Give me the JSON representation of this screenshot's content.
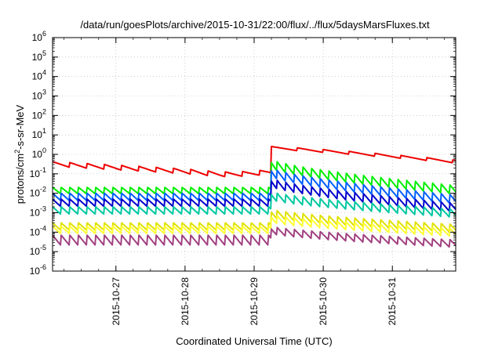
{
  "chart_data": {
    "type": "line",
    "title": "/data/run/goesPlots/archive/2015-10-31/22:00/flux/../flux/5daysMarsFluxes.txt",
    "xlabel": "Coordinated Universal Time (UTC)",
    "ylabel": "protons/cm²-s-sr-MeV",
    "y_scale": "log",
    "ylim": [
      1e-06,
      1000000.0
    ],
    "xlim": [
      "2015-10-26 02:00",
      "2015-10-31 22:00"
    ],
    "x_ticks": [
      "2015-10-27",
      "2015-10-28",
      "2015-10-29",
      "2015-10-30",
      "2015-10-31"
    ],
    "y_ticks": [
      "10^-6",
      "10^-5",
      "10^-4",
      "10^-3",
      "10^-2",
      "10^-1",
      "10^0",
      "10^1",
      "10^2",
      "10^3",
      "10^4",
      "10^5",
      "10^6"
    ],
    "grid": true,
    "event_time": "2015-10-29 06:00",
    "sawtooth_period_hours": 3,
    "series": [
      {
        "color": "#ee0000",
        "before": [
          0.3,
          0.1
        ],
        "event_peak": 2.0,
        "after_end": 0.4,
        "mode": "slow"
      },
      {
        "color": "#00ee00",
        "before": [
          0.02,
          0.009
        ],
        "event_peak": 0.55,
        "after_end": 0.025,
        "mode": "saw"
      },
      {
        "color": "#0060ff",
        "before": [
          0.01,
          0.004
        ],
        "event_peak": 0.2,
        "after_end": 0.008,
        "mode": "saw"
      },
      {
        "color": "#0000cc",
        "before": [
          0.005,
          0.002
        ],
        "event_peak": 0.06,
        "after_end": 0.003,
        "mode": "saw"
      },
      {
        "color": "#00c8a0",
        "before": [
          0.002,
          0.0008
        ],
        "event_peak": 0.012,
        "after_end": 0.0015,
        "mode": "saw"
      },
      {
        "color": "#e0e000",
        "before": [
          0.0003,
          0.00012
        ],
        "event_peak": 0.0015,
        "after_end": 0.00025,
        "mode": "saw"
      },
      {
        "color": "#ffff33",
        "before": [
          0.0002,
          8e-05
        ],
        "event_peak": 0.0008,
        "after_end": 0.00015,
        "mode": "saw"
      },
      {
        "color": "#a04080",
        "before": [
          7e-05,
          2e-05
        ],
        "event_peak": 0.0002,
        "after_end": 4e-05,
        "mode": "saw"
      }
    ]
  }
}
